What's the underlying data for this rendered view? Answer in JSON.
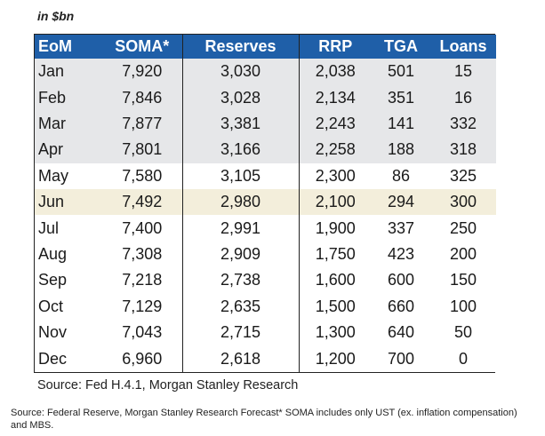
{
  "units": "in $bn",
  "table": {
    "headers": [
      "EoM",
      "SOMA*",
      "Reserves",
      "RRP",
      "TGA",
      "Loans"
    ],
    "rows": [
      {
        "month": "Jan",
        "soma": "7,920",
        "reserves": "3,030",
        "rrp": "2,038",
        "tga": "501",
        "loans": "15"
      },
      {
        "month": "Feb",
        "soma": "7,846",
        "reserves": "3,028",
        "rrp": "2,134",
        "tga": "351",
        "loans": "16"
      },
      {
        "month": "Mar",
        "soma": "7,877",
        "reserves": "3,381",
        "rrp": "2,243",
        "tga": "141",
        "loans": "332"
      },
      {
        "month": "Apr",
        "soma": "7,801",
        "reserves": "3,166",
        "rrp": "2,258",
        "tga": "188",
        "loans": "318"
      },
      {
        "month": "May",
        "soma": "7,580",
        "reserves": "3,105",
        "rrp": "2,300",
        "tga": "86",
        "loans": "325"
      },
      {
        "month": "Jun",
        "soma": "7,492",
        "reserves": "2,980",
        "rrp": "2,100",
        "tga": "294",
        "loans": "300"
      },
      {
        "month": "Jul",
        "soma": "7,400",
        "reserves": "2,991",
        "rrp": "1,900",
        "tga": "337",
        "loans": "250"
      },
      {
        "month": "Aug",
        "soma": "7,308",
        "reserves": "2,909",
        "rrp": "1,750",
        "tga": "423",
        "loans": "200"
      },
      {
        "month": "Sep",
        "soma": "7,218",
        "reserves": "2,738",
        "rrp": "1,600",
        "tga": "600",
        "loans": "150"
      },
      {
        "month": "Oct",
        "soma": "7,129",
        "reserves": "2,635",
        "rrp": "1,500",
        "tga": "660",
        "loans": "100"
      },
      {
        "month": "Nov",
        "soma": "7,043",
        "reserves": "2,715",
        "rrp": "1,300",
        "tga": "640",
        "loans": "50"
      },
      {
        "month": "Dec",
        "soma": "6,960",
        "reserves": "2,618",
        "rrp": "1,200",
        "tga": "700",
        "loans": "0"
      }
    ]
  },
  "source_line": "Source: Fed H.4.1, Morgan Stanley Research",
  "footnote": "Source: Federal Reserve, Morgan Stanley Research Forecast* SOMA includes only UST (ex. inflation compensation) and MBS.",
  "colors": {
    "header_bg": "#1f5fa8",
    "header_text": "#ffffff",
    "row_gray": "#e6e7e9",
    "row_highlight": "#f3eedb"
  }
}
